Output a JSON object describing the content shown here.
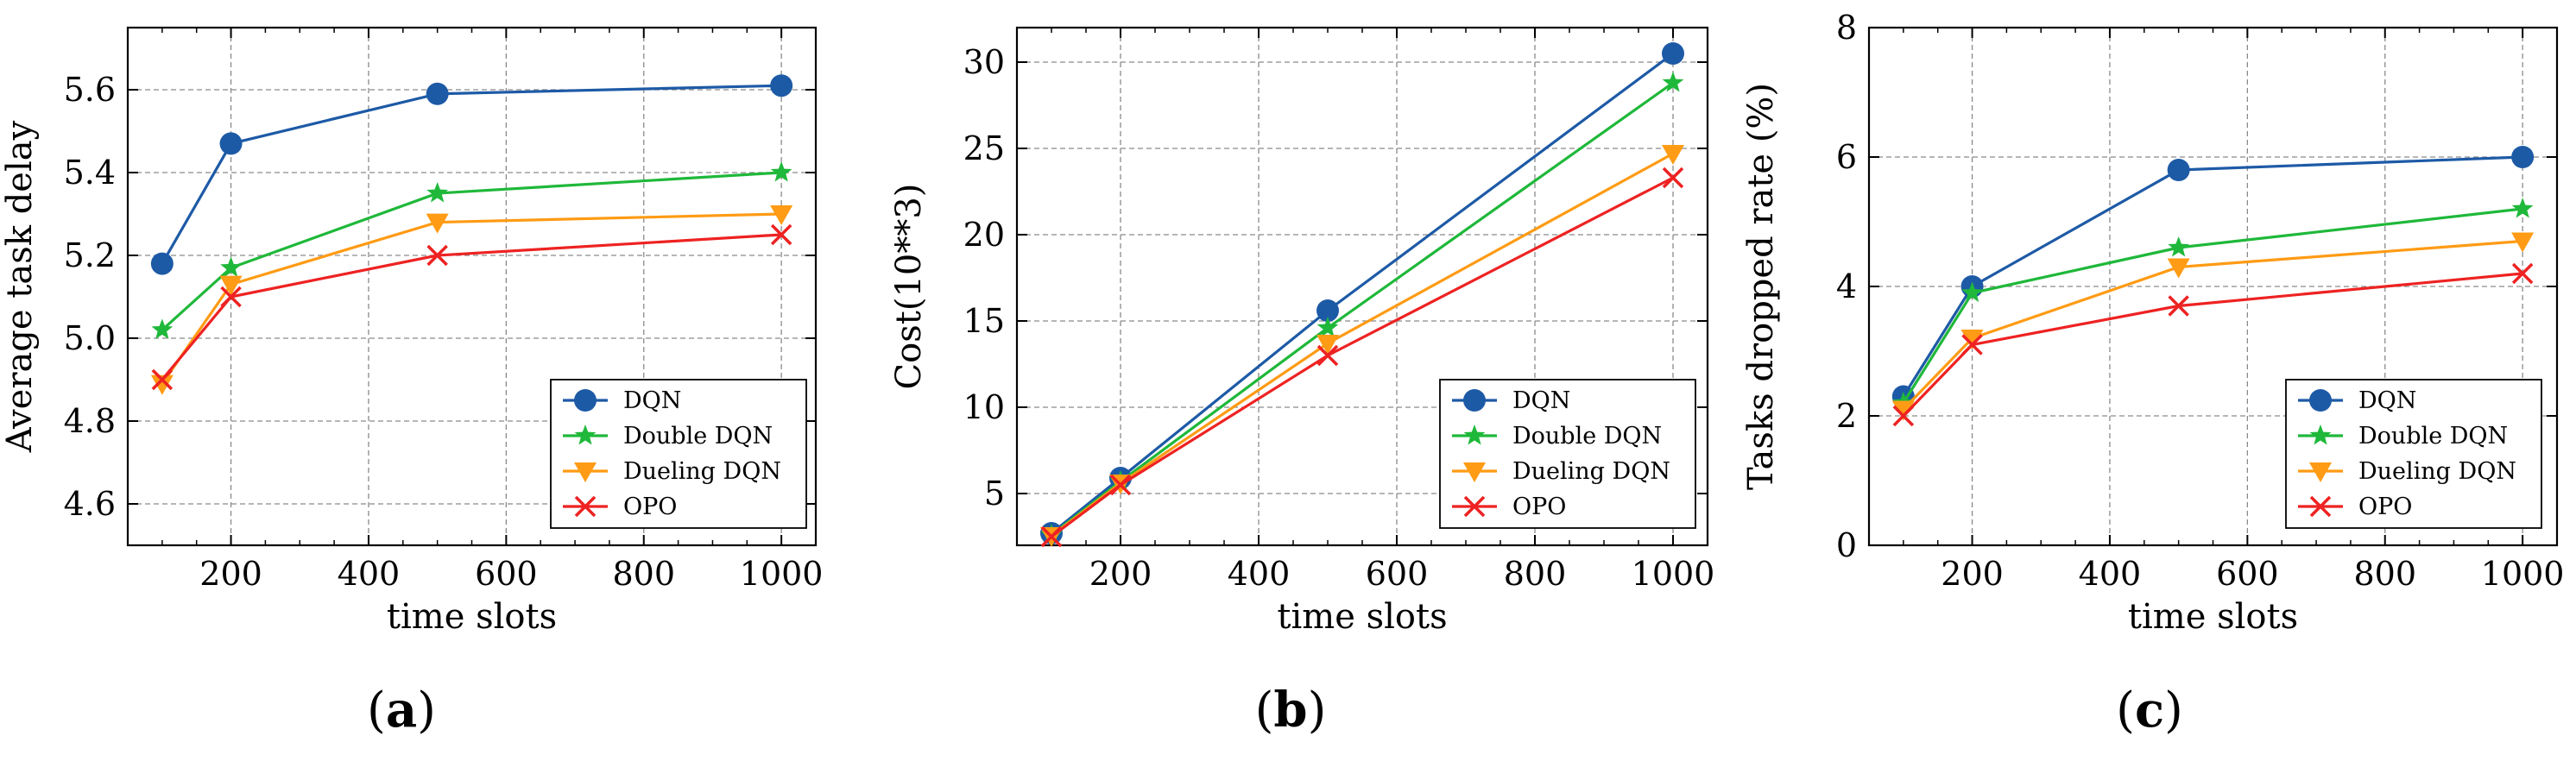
{
  "chart_data": [
    {
      "type": "line",
      "panel_label": "a",
      "caption_open": "(",
      "caption_close": ")",
      "xlabel": "time slots",
      "ylabel": "Average task delay",
      "x": [
        100,
        200,
        500,
        1000
      ],
      "xlim": [
        50,
        1050
      ],
      "ylim": [
        4.5,
        5.75
      ],
      "xticks": [
        200,
        400,
        600,
        800,
        1000
      ],
      "yticks": [
        4.6,
        4.8,
        5.0,
        5.2,
        5.4,
        5.6
      ],
      "ytick_labels": [
        "4.6",
        "4.8",
        "5.0",
        "5.2",
        "5.4",
        "5.6"
      ],
      "grid": true,
      "legend_position": "lower-right",
      "series": [
        {
          "name": "DQN",
          "values": [
            5.18,
            5.47,
            5.59,
            5.61
          ],
          "color": "#1d5aa6",
          "marker": "circle"
        },
        {
          "name": "Double DQN",
          "values": [
            5.02,
            5.17,
            5.35,
            5.4
          ],
          "color": "#1fb83a",
          "marker": "star"
        },
        {
          "name": "Dueling DQN",
          "values": [
            4.89,
            5.13,
            5.28,
            5.3
          ],
          "color": "#ff9b14",
          "marker": "triangle-down"
        },
        {
          "name": "OPO",
          "values": [
            4.9,
            5.1,
            5.2,
            5.25
          ],
          "color": "#ee2222",
          "marker": "x"
        }
      ]
    },
    {
      "type": "line",
      "panel_label": "b",
      "caption_open": "(",
      "caption_close": ")",
      "xlabel": "time slots",
      "ylabel": "Cost(10**3)",
      "x": [
        100,
        200,
        500,
        1000
      ],
      "xlim": [
        50,
        1050
      ],
      "ylim": [
        2,
        32
      ],
      "xticks": [
        200,
        400,
        600,
        800,
        1000
      ],
      "yticks": [
        5,
        10,
        15,
        20,
        25,
        30
      ],
      "ytick_labels": [
        "5",
        "10",
        "15",
        "20",
        "25",
        "30"
      ],
      "grid": true,
      "legend_position": "lower-right",
      "series": [
        {
          "name": "DQN",
          "values": [
            2.7,
            5.9,
            15.6,
            30.5
          ],
          "color": "#1d5aa6",
          "marker": "circle"
        },
        {
          "name": "Double DQN",
          "values": [
            2.6,
            5.7,
            14.6,
            28.8
          ],
          "color": "#1fb83a",
          "marker": "star"
        },
        {
          "name": "Dueling DQN",
          "values": [
            2.55,
            5.6,
            13.7,
            24.7
          ],
          "color": "#ff9b14",
          "marker": "triangle-down"
        },
        {
          "name": "OPO",
          "values": [
            2.5,
            5.5,
            13.0,
            23.3
          ],
          "color": "#ee2222",
          "marker": "x"
        }
      ]
    },
    {
      "type": "line",
      "panel_label": "c",
      "caption_open": "(",
      "caption_close": ")",
      "xlabel": "time slots",
      "ylabel": "Tasks dropped rate (%)",
      "x": [
        100,
        200,
        500,
        1000
      ],
      "xlim": [
        50,
        1050
      ],
      "ylim": [
        0,
        8
      ],
      "xticks": [
        200,
        400,
        600,
        800,
        1000
      ],
      "yticks": [
        0,
        2,
        4,
        6,
        8
      ],
      "ytick_labels": [
        "0",
        "2",
        "4",
        "6",
        "8"
      ],
      "grid": true,
      "legend_position": "lower-right",
      "series": [
        {
          "name": "DQN",
          "values": [
            2.3,
            4.0,
            5.8,
            6.0
          ],
          "color": "#1d5aa6",
          "marker": "circle"
        },
        {
          "name": "Double DQN",
          "values": [
            2.2,
            3.9,
            4.6,
            5.2
          ],
          "color": "#1fb83a",
          "marker": "star"
        },
        {
          "name": "Dueling DQN",
          "values": [
            2.1,
            3.2,
            4.3,
            4.7
          ],
          "color": "#ff9b14",
          "marker": "triangle-down"
        },
        {
          "name": "OPO",
          "values": [
            2.0,
            3.1,
            3.7,
            4.2
          ],
          "color": "#ee2222",
          "marker": "x"
        }
      ]
    }
  ]
}
